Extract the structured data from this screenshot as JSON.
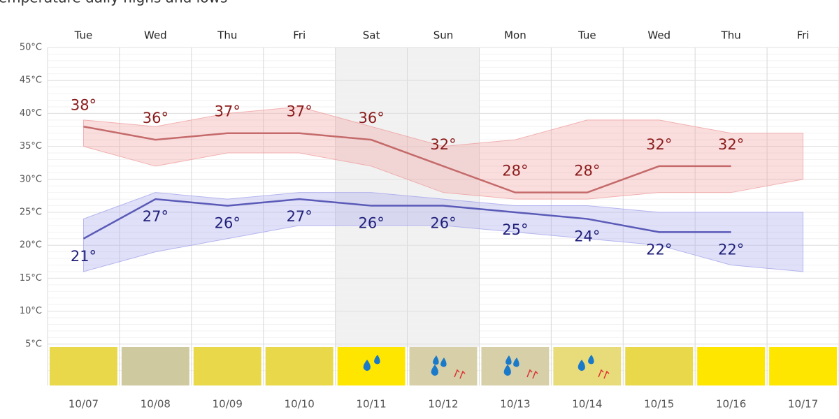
{
  "chart_data": {
    "type": "line",
    "title": "Temperature daily highs and lows",
    "categories": [
      "Tue",
      "Wed",
      "Thu",
      "Fri",
      "Sat",
      "Sun",
      "Mon",
      "Tue",
      "Wed",
      "Thu",
      "Fri"
    ],
    "dates": [
      "10/07",
      "10/08",
      "10/09",
      "10/10",
      "10/11",
      "10/12",
      "10/13",
      "10/14",
      "10/15",
      "10/16",
      "10/17"
    ],
    "series": [
      {
        "color": "#c56a6a",
        "label_color": "#8b1a1a",
        "band_color": "#f0a0a0",
        "values": [
          38,
          36,
          37,
          37,
          36,
          32,
          28,
          28,
          32,
          32,
          null
        ],
        "value_labels": [
          "38°",
          "36°",
          "37°",
          "37°",
          "36°",
          "32°",
          "28°",
          "28°",
          "32°",
          "32°",
          null
        ],
        "band_upper": [
          39,
          38,
          40,
          41,
          38,
          35,
          36,
          39,
          39,
          37,
          37
        ],
        "band_lower": [
          35,
          32,
          34,
          34,
          32,
          28,
          27,
          27,
          28,
          28,
          30
        ]
      },
      {
        "color": "#5a5ab8",
        "label_color": "#1f1f7a",
        "band_color": "#a6a6ec",
        "values": [
          21,
          27,
          26,
          27,
          26,
          26,
          25,
          24,
          22,
          22,
          null
        ],
        "value_labels": [
          "21°",
          "27°",
          "26°",
          "27°",
          "26°",
          "26°",
          "25°",
          "24°",
          "22°",
          "22°",
          null
        ],
        "band_upper": [
          24,
          28,
          27,
          28,
          28,
          27,
          26,
          26,
          25,
          25,
          25
        ],
        "band_lower": [
          16,
          19,
          21,
          23,
          23,
          23,
          22,
          21,
          20,
          17,
          16
        ]
      }
    ],
    "ylim": [
      0,
      50
    ],
    "yticks": [
      {
        "value": 5,
        "label": "5°C"
      },
      {
        "value": 10,
        "label": "10°C"
      },
      {
        "value": 15,
        "label": "15°C"
      },
      {
        "value": 20,
        "label": "20°C"
      },
      {
        "value": 25,
        "label": "25°C"
      },
      {
        "value": 30,
        "label": "30°C"
      },
      {
        "value": 35,
        "label": "35°C"
      },
      {
        "value": 40,
        "label": "40°C"
      },
      {
        "value": 45,
        "label": "45°C"
      },
      {
        "value": 50,
        "label": "50°C"
      }
    ],
    "grid": true,
    "shaded_columns": [
      4,
      5
    ],
    "strip_colors": [
      "#e8d84a",
      "#cfc9a0",
      "#e8d84a",
      "#e8d84a",
      "#ffe600",
      "#d6cfa8",
      "#d6cfa8",
      "#e8dc7a",
      "#e8d84a",
      "#ffe600",
      "#ffe600"
    ]
  }
}
